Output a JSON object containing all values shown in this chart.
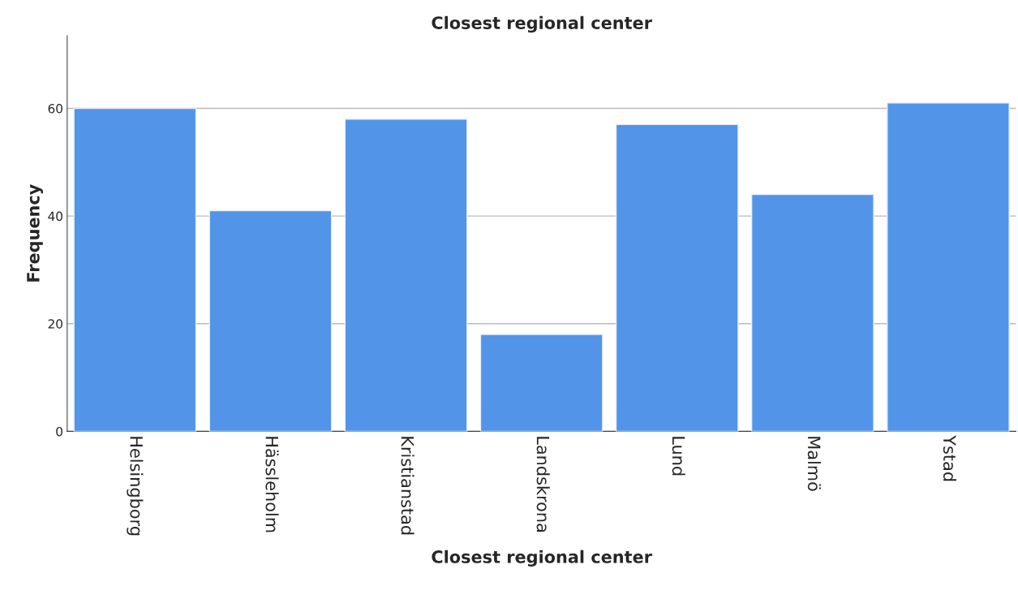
{
  "chart_data": {
    "type": "bar",
    "title": "Closest regional center",
    "xlabel": "Closest regional center",
    "ylabel": "Frequency",
    "categories": [
      "Helsingborg",
      "Hässleholm",
      "Kristianstad",
      "Landskrona",
      "Lund",
      "Malmö",
      "Ystad"
    ],
    "values": [
      60,
      41,
      58,
      18,
      57,
      44,
      61
    ],
    "color": "#5294e8",
    "ylim": [
      0,
      73.5
    ],
    "yticks": [
      0,
      20,
      40,
      60
    ],
    "grid": "y",
    "legend": false
  }
}
